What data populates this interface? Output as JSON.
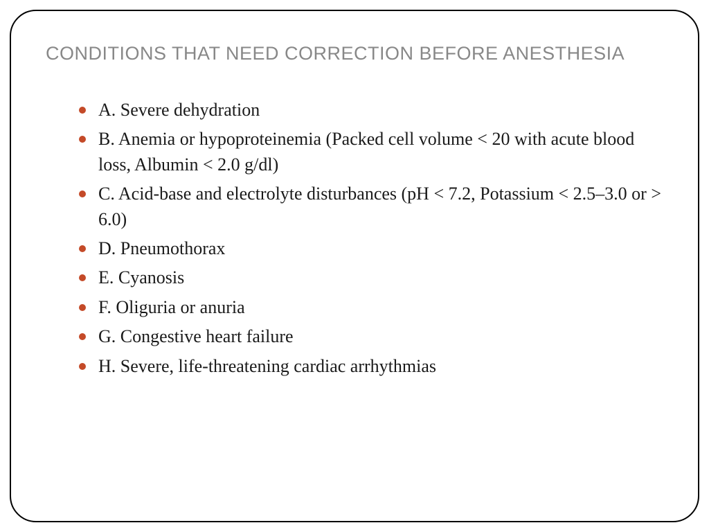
{
  "slide": {
    "title": "CONDITIONS THAT NEED CORRECTION BEFORE ANESTHESIA",
    "title_color": "#888888",
    "title_fontsize": 27,
    "title_font": "Arial",
    "body_font": "Garamond",
    "body_fontsize": 26,
    "body_color": "#1a1a1a",
    "bullet_color": "#c44a28",
    "frame_border_color": "#000000",
    "frame_border_radius": 38,
    "background_color": "#ffffff",
    "items": [
      "A. Severe dehydration",
      "B. Anemia or hypoproteinemia (Packed cell volume < 20 with acute blood loss, Albumin < 2.0 g/dl)",
      "C. Acid-base and electrolyte disturbances (pH < 7.2, Potassium < 2.5–3.0 or > 6.0)",
      "D. Pneumothorax",
      "E. Cyanosis",
      "F. Oliguria or anuria",
      "G. Congestive heart failure",
      "H. Severe, life-threatening cardiac arrhythmias"
    ]
  }
}
